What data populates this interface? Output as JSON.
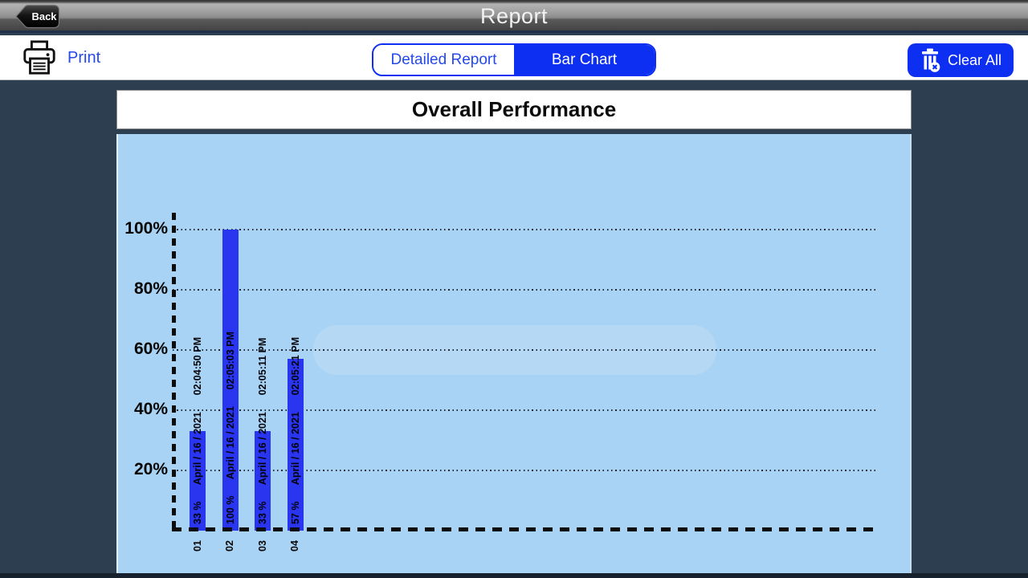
{
  "header": {
    "back_label": "Back",
    "title": "Report"
  },
  "toolbar": {
    "print_label": "Print",
    "segmented": {
      "items": [
        {
          "label": "Detailed Report",
          "active": false
        },
        {
          "label": "Bar Chart",
          "active": true
        }
      ]
    },
    "clear_all_label": "Clear All"
  },
  "report_title": "Overall Performance",
  "chart_data": {
    "type": "bar",
    "title": "Overall Performance",
    "categories": [
      "01",
      "02",
      "03",
      "04"
    ],
    "values": [
      33,
      100,
      33,
      57
    ],
    "bars": [
      {
        "category": "01",
        "value": 33,
        "percent_label": "33 %",
        "date_label": "April / 16 / 2021",
        "time_label": "02:04:50 PM"
      },
      {
        "category": "02",
        "value": 100,
        "percent_label": "100 %",
        "date_label": "April / 16 / 2021",
        "time_label": "02:05:03 PM"
      },
      {
        "category": "03",
        "value": 33,
        "percent_label": "33 %",
        "date_label": "April / 16 / 2021",
        "time_label": "02:05:11 PM"
      },
      {
        "category": "04",
        "value": 57,
        "percent_label": "57 %",
        "date_label": "April / 16 / 2021",
        "time_label": "02:05:21 PM"
      }
    ],
    "yticks": [
      {
        "value": 100,
        "label": "100%"
      },
      {
        "value": 80,
        "label": "80%"
      },
      {
        "value": 60,
        "label": "60%"
      },
      {
        "value": 40,
        "label": "40%"
      },
      {
        "value": 20,
        "label": "20%"
      }
    ],
    "ylim": [
      0,
      100
    ],
    "grid": {
      "horizontal": "dotted",
      "vertical": "none"
    },
    "legend": "none",
    "colors": {
      "bar": "#2a35f0",
      "panel_background": "#a9d3f4",
      "grid_line": "#0a0a12",
      "axis_line": "#0c0c0c",
      "label_text": "#00030a"
    }
  },
  "colors": {
    "accent_blue": "#0d2ff2",
    "link_blue": "#2448ea",
    "page_background": "#2d3e50",
    "header_title": "#f2f2f2"
  }
}
